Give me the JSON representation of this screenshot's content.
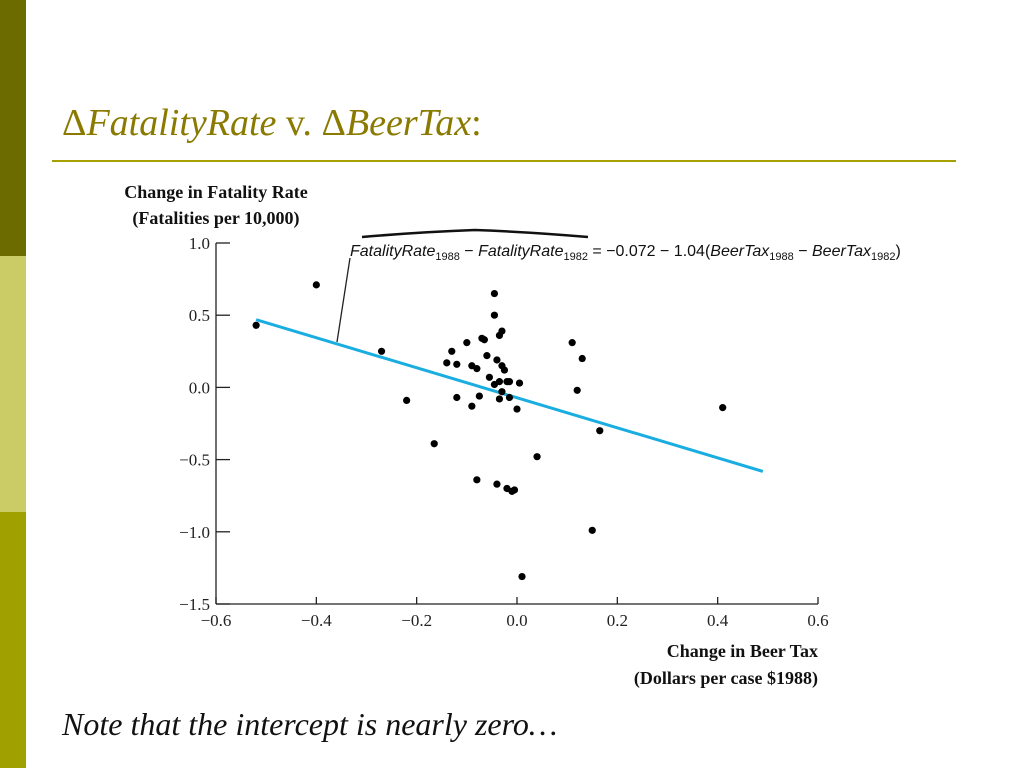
{
  "slide": {
    "title_prefix_delta": "Δ",
    "title_var1": "FatalityRate",
    "title_vs": " v. ",
    "title_prefix_delta2": "Δ",
    "title_var2": "BeerTax",
    "title_colon": ":",
    "note": "Note that the intercept is nearly zero…",
    "colors": {
      "accent": "#8a7a00",
      "bar_dark": "#6b6b00",
      "bar_light": "#cccc66",
      "bar_olive": "#a0a000"
    }
  },
  "chart_data": {
    "type": "scatter",
    "ylabel_lines": [
      "Change in Fatality Rate",
      "(Fatalities per 10,000)"
    ],
    "xlabel_lines": [
      "Change in Beer Tax",
      "(Dollars per case $1988)"
    ],
    "xlim": [
      -0.6,
      0.6
    ],
    "ylim": [
      -1.5,
      1.0
    ],
    "x_ticks": [
      -0.6,
      -0.4,
      -0.2,
      0.0,
      0.2,
      0.4,
      0.6
    ],
    "x_tick_labels": [
      "−0.6",
      "−0.4",
      "−0.2",
      "0.0",
      "0.2",
      "0.4",
      "0.6"
    ],
    "y_ticks": [
      1.0,
      0.5,
      0.0,
      -0.5,
      -1.0,
      -1.5
    ],
    "y_tick_labels": [
      "1.0",
      "0.5",
      "0.0",
      "−0.5",
      "−1.0",
      "−1.5"
    ],
    "grid": false,
    "points": [
      {
        "x": -0.52,
        "y": 0.43
      },
      {
        "x": -0.4,
        "y": 0.71
      },
      {
        "x": -0.27,
        "y": 0.25
      },
      {
        "x": -0.22,
        "y": -0.09
      },
      {
        "x": -0.165,
        "y": -0.39
      },
      {
        "x": -0.13,
        "y": 0.25
      },
      {
        "x": -0.14,
        "y": 0.17
      },
      {
        "x": -0.12,
        "y": 0.16
      },
      {
        "x": -0.12,
        "y": -0.07
      },
      {
        "x": -0.1,
        "y": 0.31
      },
      {
        "x": -0.09,
        "y": 0.15
      },
      {
        "x": -0.08,
        "y": 0.13
      },
      {
        "x": -0.09,
        "y": -0.13
      },
      {
        "x": -0.075,
        "y": -0.06
      },
      {
        "x": -0.065,
        "y": 0.33
      },
      {
        "x": -0.07,
        "y": 0.34
      },
      {
        "x": -0.06,
        "y": 0.22
      },
      {
        "x": -0.055,
        "y": 0.07
      },
      {
        "x": -0.045,
        "y": 0.65
      },
      {
        "x": -0.045,
        "y": 0.5
      },
      {
        "x": -0.04,
        "y": 0.19
      },
      {
        "x": -0.035,
        "y": 0.36
      },
      {
        "x": -0.03,
        "y": 0.39
      },
      {
        "x": -0.03,
        "y": 0.15
      },
      {
        "x": -0.025,
        "y": 0.12
      },
      {
        "x": -0.045,
        "y": 0.02
      },
      {
        "x": -0.035,
        "y": 0.04
      },
      {
        "x": -0.02,
        "y": 0.04
      },
      {
        "x": -0.015,
        "y": 0.04
      },
      {
        "x": -0.03,
        "y": -0.03
      },
      {
        "x": -0.035,
        "y": -0.08
      },
      {
        "x": -0.015,
        "y": -0.07
      },
      {
        "x": 0.005,
        "y": 0.03
      },
      {
        "x": 0.0,
        "y": -0.15
      },
      {
        "x": -0.08,
        "y": -0.64
      },
      {
        "x": -0.04,
        "y": -0.67
      },
      {
        "x": -0.02,
        "y": -0.7
      },
      {
        "x": -0.01,
        "y": -0.72
      },
      {
        "x": -0.005,
        "y": -0.71
      },
      {
        "x": 0.04,
        "y": -0.48
      },
      {
        "x": 0.01,
        "y": -1.31
      },
      {
        "x": 0.11,
        "y": 0.31
      },
      {
        "x": 0.13,
        "y": 0.2
      },
      {
        "x": 0.12,
        "y": -0.02
      },
      {
        "x": 0.165,
        "y": -0.3
      },
      {
        "x": 0.15,
        "y": -0.99
      },
      {
        "x": 0.41,
        "y": -0.14
      }
    ],
    "regression": {
      "intercept": -0.072,
      "slope": -1.04,
      "x_from": -0.52,
      "x_to": 0.49,
      "color": "#1aaee0",
      "equation": {
        "lhs_a": "FatalityRate",
        "sub_a": "1988",
        "minus1": " − ",
        "lhs_b": "FatalityRate",
        "sub_b": "1982",
        "rhs_pre": " = −0.072 − 1.04(",
        "var_c": "BeerTax",
        "sub_c": "1988",
        "minus2": " − ",
        "var_d": "BeerTax",
        "sub_d": "1982",
        "close": ")"
      }
    }
  }
}
